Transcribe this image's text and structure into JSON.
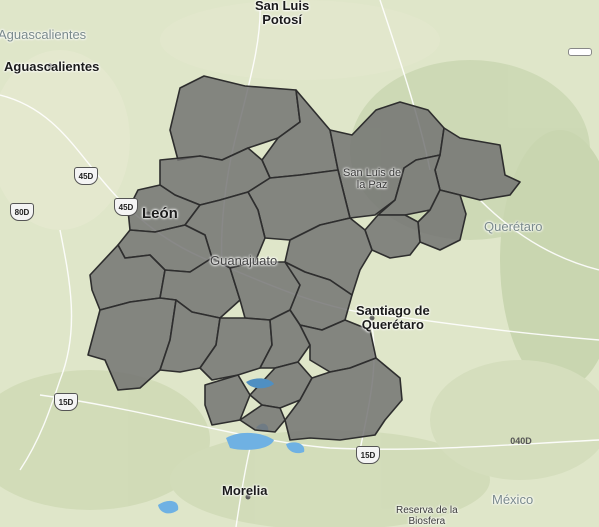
{
  "map": {
    "labels": {
      "san_luis_potosi": "San Luis\nPotosí",
      "aguascalientes": "Aguascalientes",
      "aguascalientes_state": "Aguascalientes",
      "leon": "León",
      "guanajuato": "Guanajuato",
      "san_luis_de_la_paz": "San Luis de\nla Paz",
      "queretaro_state": "Querétaro",
      "santiago_de_queretaro": "Santiago de\nQuerétaro",
      "morelia": "Morelia",
      "mexico": "México",
      "reserva": "Reserva de la\nBiosfera"
    },
    "highways": [
      "45D",
      "45D",
      "80D",
      "15D",
      "15D",
      "040D"
    ],
    "colors": {
      "region_fill": "#6f6f6f",
      "region_border": "#2e2e2e",
      "water": "#6fb1e3",
      "terrain": "#dfe6c9"
    }
  }
}
